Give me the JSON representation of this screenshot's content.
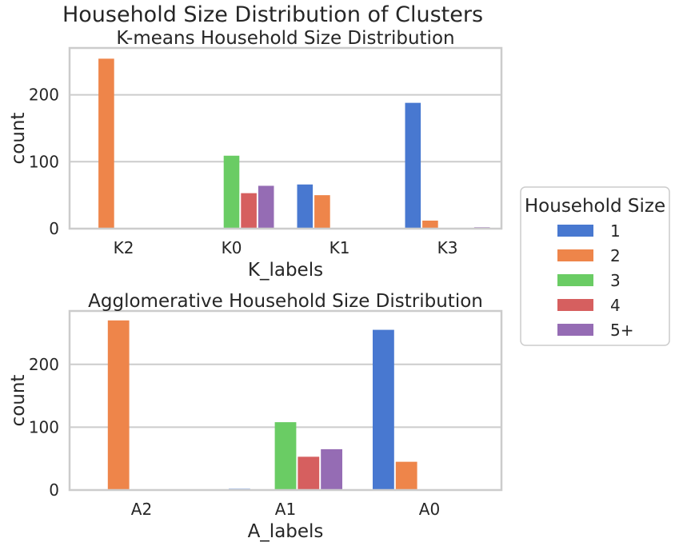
{
  "suptitle": "Household Size Distribution of Clusters",
  "legend": {
    "title": "Household Size",
    "placement": "right",
    "entries": [
      "1",
      "2",
      "3",
      "4",
      "5+"
    ]
  },
  "colors": [
    "#4878d0",
    "#ee854a",
    "#6acc64",
    "#d65f5f",
    "#956cb4"
  ],
  "chart_data": [
    {
      "type": "bar",
      "title": "K-means Household Size Distribution",
      "xlabel": "K_labels",
      "ylabel": "count",
      "categories": [
        "K2",
        "K0",
        "K1",
        "K3"
      ],
      "ylim": [
        0,
        270
      ],
      "yticks": [
        0,
        100,
        200
      ],
      "grid": true,
      "series": [
        {
          "name": "1",
          "values": [
            0,
            0,
            66,
            188
          ]
        },
        {
          "name": "2",
          "values": [
            254,
            0,
            50,
            12
          ]
        },
        {
          "name": "3",
          "values": [
            0,
            109,
            0,
            0
          ]
        },
        {
          "name": "4",
          "values": [
            0,
            53,
            0,
            0
          ]
        },
        {
          "name": "5+",
          "values": [
            0,
            64,
            0,
            2
          ]
        }
      ]
    },
    {
      "type": "bar",
      "title": "Agglomerative Household Size Distribution",
      "xlabel": "A_labels",
      "ylabel": "count",
      "categories": [
        "A2",
        "A1",
        "A0"
      ],
      "ylim": [
        0,
        285
      ],
      "yticks": [
        0,
        100,
        200
      ],
      "grid": true,
      "series": [
        {
          "name": "1",
          "values": [
            0,
            2,
            255
          ]
        },
        {
          "name": "2",
          "values": [
            270,
            0,
            45
          ]
        },
        {
          "name": "3",
          "values": [
            0,
            108,
            0
          ]
        },
        {
          "name": "4",
          "values": [
            0,
            53,
            0
          ]
        },
        {
          "name": "5+",
          "values": [
            0,
            65,
            0
          ]
        }
      ]
    }
  ]
}
